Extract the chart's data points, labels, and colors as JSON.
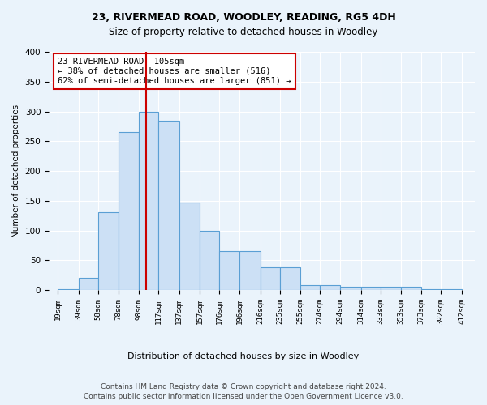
{
  "title1": "23, RIVERMEAD ROAD, WOODLEY, READING, RG5 4DH",
  "title2": "Size of property relative to detached houses in Woodley",
  "xlabel": "Distribution of detached houses by size in Woodley",
  "ylabel": "Number of detached properties",
  "footer1": "Contains HM Land Registry data © Crown copyright and database right 2024.",
  "footer2": "Contains public sector information licensed under the Open Government Licence v3.0.",
  "annotation_line1": "23 RIVERMEAD ROAD: 105sqm",
  "annotation_line2": "← 38% of detached houses are smaller (516)",
  "annotation_line3": "62% of semi-detached houses are larger (851) →",
  "property_size": 105,
  "bar_left_edges": [
    19,
    39,
    58,
    78,
    98,
    117,
    137,
    157,
    176,
    196,
    216,
    235,
    255,
    274,
    294,
    314,
    333,
    353,
    373,
    392
  ],
  "bar_widths": [
    20,
    19,
    20,
    20,
    19,
    20,
    20,
    19,
    20,
    20,
    19,
    20,
    19,
    20,
    20,
    19,
    20,
    20,
    19,
    20
  ],
  "bar_heights": [
    1,
    20,
    130,
    265,
    300,
    285,
    147,
    100,
    65,
    65,
    38,
    38,
    8,
    8,
    5,
    5,
    5,
    5,
    2,
    1
  ],
  "bar_facecolor": "#cce0f5",
  "bar_edgecolor": "#5a9fd4",
  "vline_x": 105,
  "vline_color": "#cc0000",
  "vline_linewidth": 1.5,
  "ylim": [
    0,
    400
  ],
  "yticks": [
    0,
    50,
    100,
    150,
    200,
    250,
    300,
    350,
    400
  ],
  "background_color": "#eaf3fb",
  "axes_background_color": "#eaf3fb",
  "grid_color": "#ffffff",
  "xtick_labels": [
    "19sqm",
    "39sqm",
    "58sqm",
    "78sqm",
    "98sqm",
    "117sqm",
    "137sqm",
    "157sqm",
    "176sqm",
    "196sqm",
    "216sqm",
    "235sqm",
    "255sqm",
    "274sqm",
    "294sqm",
    "314sqm",
    "333sqm",
    "353sqm",
    "373sqm",
    "392sqm",
    "412sqm"
  ],
  "xtick_positions": [
    19,
    39,
    58,
    78,
    98,
    117,
    137,
    157,
    176,
    196,
    216,
    235,
    255,
    274,
    294,
    314,
    333,
    353,
    373,
    392,
    412
  ],
  "annotation_box_facecolor": "#ffffff",
  "annotation_box_edgecolor": "#cc0000",
  "title1_fontsize": 9,
  "title2_fontsize": 8.5,
  "annotation_fontsize": 7.5,
  "ylabel_fontsize": 7.5,
  "xtick_fontsize": 6.5,
  "ytick_fontsize": 7.5,
  "footer_fontsize": 6.5,
  "xlabel_fontsize": 8
}
